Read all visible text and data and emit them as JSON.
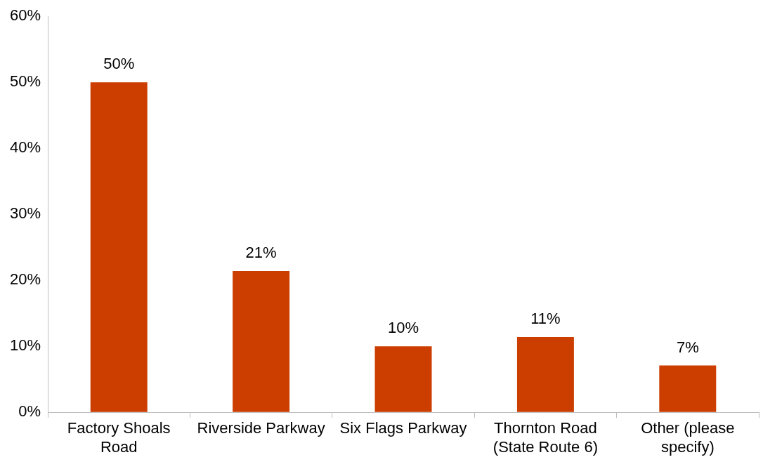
{
  "chart_data": {
    "type": "bar",
    "categories": [
      "Factory Shoals Road",
      "Riverside Parkway",
      "Six Flags Parkway",
      "Thornton Road (State Route 6)",
      "Other (please specify)"
    ],
    "values": [
      50,
      21.4,
      10,
      11.4,
      7.1
    ],
    "value_labels": [
      "50%",
      "21%",
      "10%",
      "11%",
      "7%"
    ],
    "color": "#cc3d00",
    "ylim": [
      0,
      60
    ],
    "yticks": [
      {
        "value": 0,
        "label": "0%"
      },
      {
        "value": 10,
        "label": "10%"
      },
      {
        "value": 20,
        "label": "20%"
      },
      {
        "value": 30,
        "label": "30%"
      },
      {
        "value": 40,
        "label": "40%"
      },
      {
        "value": 50,
        "label": "50%"
      },
      {
        "value": 60,
        "label": "60%"
      }
    ],
    "grid": false,
    "legend": false
  }
}
